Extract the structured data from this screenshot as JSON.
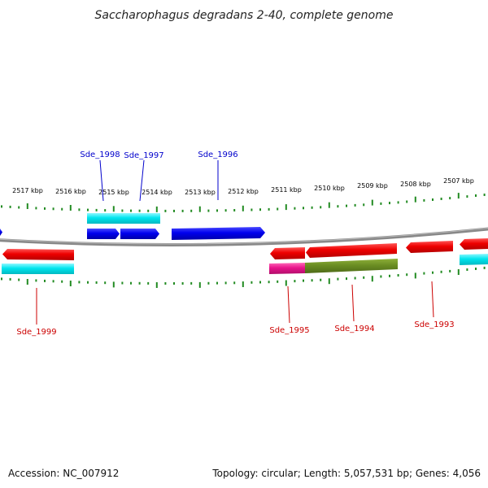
{
  "title": "Saccharophagus degradans 2-40, complete genome",
  "footer": {
    "accession": "Accession: NC_007912",
    "summary": "Topology: circular; Length: 5,057,531 bp; Genes: 4,056"
  },
  "scale": {
    "labels": [
      "2517 kbp",
      "2516 kbp",
      "2515 kbp",
      "2514 kbp",
      "2513 kbp",
      "2512 kbp",
      "2511 kbp",
      "2510 kbp",
      "2509 kbp",
      "2508 kbp",
      "2507 kbp"
    ]
  },
  "gene_labels": {
    "forward": [
      "Sde_1998",
      "Sde_1997",
      "Sde_1996"
    ],
    "reverse": [
      "Sde_1999",
      "Sde_1995",
      "Sde_1994",
      "Sde_1993"
    ]
  },
  "colors": {
    "forward_cds": "#0000ee",
    "forward_gene": "#00e5ee",
    "reverse_cds": "#ee0000",
    "reverse_gene": "#00e5ee",
    "pink_feature": "#e8148c",
    "olive_feature": "#6b8e23",
    "backbone": "#888888",
    "ticks": "#228b22",
    "forward_label": "#0000cc",
    "reverse_label": "#cc0000"
  }
}
